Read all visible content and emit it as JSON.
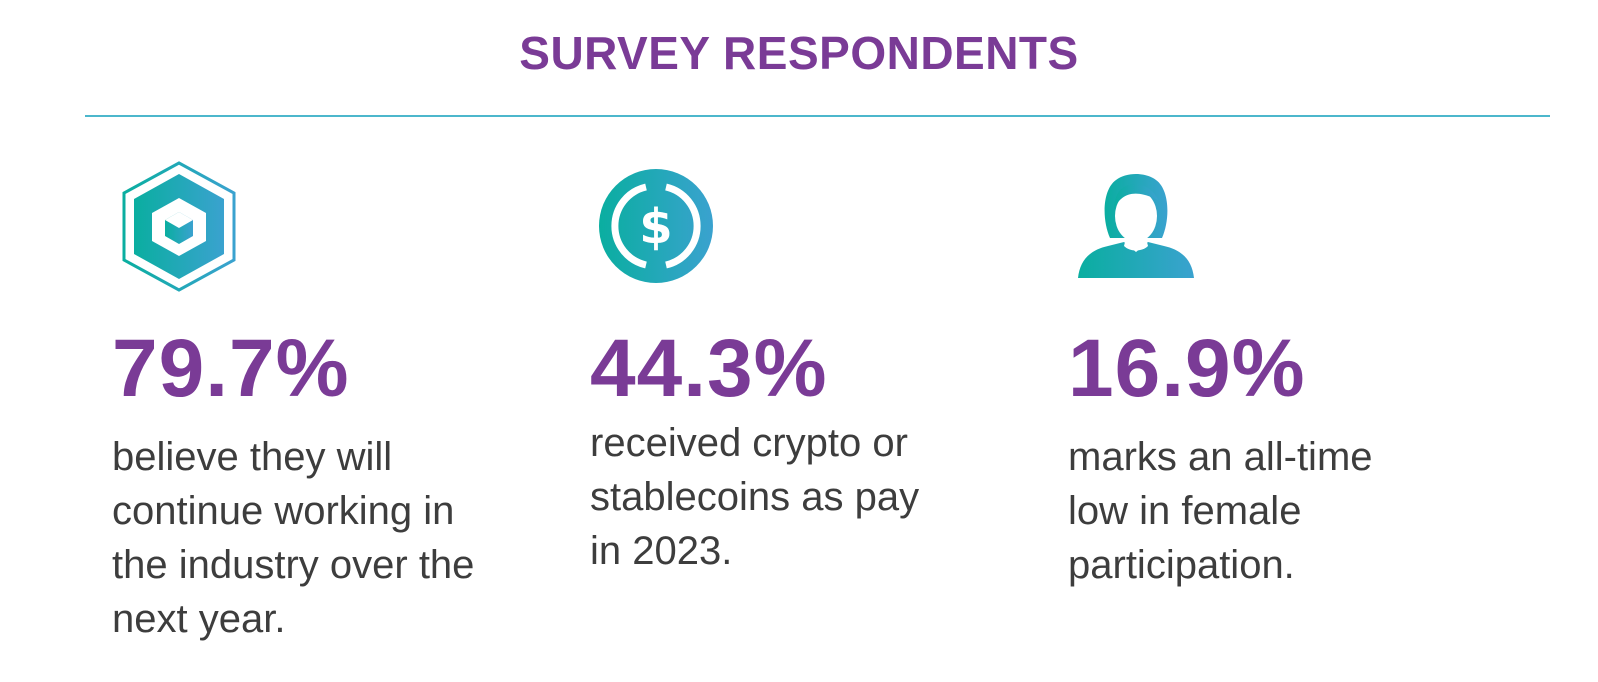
{
  "header": {
    "title": "SURVEY RESPONDENTS"
  },
  "colors": {
    "accent": "#7a3b96",
    "teal_start": "#0aaea0",
    "teal_end": "#3aa2cf",
    "divider": "#4cb7cc",
    "text": "#3d3d3d"
  },
  "stats": [
    {
      "icon": "hexagon-cube-icon",
      "value": "79.7%",
      "description": "believe they will\ncontinue working in\nthe industry over the\nnext year."
    },
    {
      "icon": "dollar-coin-icon",
      "value": "44.3%",
      "description": "received crypto or\nstablecoins as pay\nin 2023."
    },
    {
      "icon": "woman-avatar-icon",
      "value": "16.9%",
      "description": "marks an all-time\nlow in female\nparticipation."
    }
  ]
}
